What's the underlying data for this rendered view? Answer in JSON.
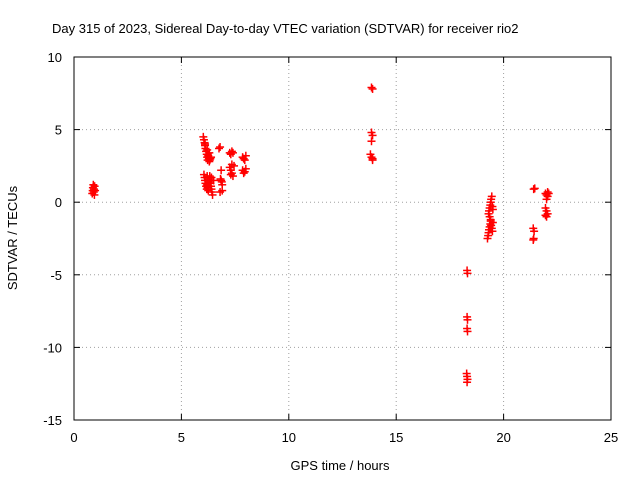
{
  "chart_data": {
    "type": "scatter",
    "title": "Day 315 of 2023, Sidereal Day-to-day VTEC variation (SDTVAR) for receiver rio2",
    "xlabel": "GPS time / hours",
    "ylabel": "SDTVAR / TECUs",
    "xlim": [
      0,
      25
    ],
    "ylim": [
      -15,
      10
    ],
    "xticks": [
      "0",
      "5",
      "10",
      "15",
      "20",
      "25"
    ],
    "yticks": [
      "10",
      "5",
      "0",
      "-5",
      "-10",
      "-15"
    ],
    "grid": true,
    "marker": "plus",
    "color": "#ff0000",
    "series": [
      {
        "name": "SDTVAR",
        "points": [
          [
            0.85,
            0.6
          ],
          [
            0.87,
            0.8
          ],
          [
            0.88,
            1.0
          ],
          [
            0.9,
            1.2
          ],
          [
            0.92,
            0.7
          ],
          [
            0.93,
            0.9
          ],
          [
            0.95,
            0.5
          ],
          [
            0.96,
            1.1
          ],
          [
            0.98,
            0.8
          ],
          [
            6.02,
            4.5
          ],
          [
            6.05,
            4.3
          ],
          [
            6.08,
            4.1
          ],
          [
            6.1,
            3.9
          ],
          [
            6.12,
            3.7
          ],
          [
            6.15,
            3.5
          ],
          [
            6.18,
            3.3
          ],
          [
            6.2,
            3.1
          ],
          [
            6.22,
            2.9
          ],
          [
            6.25,
            3.2
          ],
          [
            6.28,
            3.0
          ],
          [
            6.3,
            2.8
          ],
          [
            6.32,
            2.9
          ],
          [
            6.35,
            3.0
          ],
          [
            6.38,
            3.1
          ],
          [
            6.1,
            4.0
          ],
          [
            6.2,
            3.6
          ],
          [
            6.3,
            3.4
          ],
          [
            6.05,
            1.9
          ],
          [
            6.08,
            1.7
          ],
          [
            6.1,
            1.5
          ],
          [
            6.12,
            1.3
          ],
          [
            6.15,
            1.1
          ],
          [
            6.18,
            0.9
          ],
          [
            6.2,
            1.2
          ],
          [
            6.22,
            1.0
          ],
          [
            6.25,
            0.8
          ],
          [
            6.28,
            1.4
          ],
          [
            6.3,
            1.6
          ],
          [
            6.32,
            1.8
          ],
          [
            6.35,
            1.3
          ],
          [
            6.38,
            1.1
          ],
          [
            6.4,
            0.9
          ],
          [
            6.42,
            0.7
          ],
          [
            6.45,
            0.5
          ],
          [
            6.5,
            1.5
          ],
          [
            6.4,
            1.7
          ],
          [
            6.2,
            1.8
          ],
          [
            6.75,
            3.7
          ],
          [
            6.8,
            3.8
          ],
          [
            6.85,
            2.2
          ],
          [
            6.82,
            1.6
          ],
          [
            6.88,
            1.4
          ],
          [
            6.9,
            1.2
          ],
          [
            6.85,
            1.5
          ],
          [
            6.8,
            0.7
          ],
          [
            6.9,
            0.8
          ],
          [
            7.25,
            3.4
          ],
          [
            7.3,
            3.3
          ],
          [
            7.35,
            3.5
          ],
          [
            7.4,
            3.4
          ],
          [
            7.25,
            2.4
          ],
          [
            7.3,
            2.2
          ],
          [
            7.35,
            2.0
          ],
          [
            7.4,
            1.8
          ],
          [
            7.45,
            2.5
          ],
          [
            7.3,
            1.9
          ],
          [
            7.35,
            2.6
          ],
          [
            7.85,
            3.1
          ],
          [
            7.9,
            3.0
          ],
          [
            7.95,
            2.9
          ],
          [
            8.0,
            3.2
          ],
          [
            7.85,
            2.2
          ],
          [
            7.9,
            2.0
          ],
          [
            7.95,
            2.1
          ],
          [
            8.0,
            2.3
          ],
          [
            13.85,
            7.9
          ],
          [
            13.9,
            7.8
          ],
          [
            13.85,
            4.8
          ],
          [
            13.9,
            4.6
          ],
          [
            13.85,
            4.2
          ],
          [
            13.8,
            3.3
          ],
          [
            13.85,
            3.1
          ],
          [
            13.9,
            3.0
          ],
          [
            13.9,
            2.9
          ],
          [
            18.3,
            -4.7
          ],
          [
            18.32,
            -4.9
          ],
          [
            18.3,
            -7.9
          ],
          [
            18.32,
            -8.1
          ],
          [
            18.3,
            -8.7
          ],
          [
            18.32,
            -8.9
          ],
          [
            18.28,
            -11.8
          ],
          [
            18.3,
            -12.0
          ],
          [
            18.32,
            -12.2
          ],
          [
            18.3,
            -12.4
          ],
          [
            19.25,
            -2.5
          ],
          [
            19.28,
            -2.3
          ],
          [
            19.3,
            -2.1
          ],
          [
            19.32,
            -1.9
          ],
          [
            19.35,
            -1.7
          ],
          [
            19.38,
            -1.5
          ],
          [
            19.4,
            -1.3
          ],
          [
            19.42,
            -1.6
          ],
          [
            19.45,
            -1.8
          ],
          [
            19.48,
            -2.0
          ],
          [
            19.5,
            -1.4
          ],
          [
            19.3,
            -0.8
          ],
          [
            19.32,
            -0.6
          ],
          [
            19.35,
            -0.4
          ],
          [
            19.38,
            -0.2
          ],
          [
            19.4,
            0.0
          ],
          [
            19.42,
            0.2
          ],
          [
            19.45,
            0.4
          ],
          [
            19.48,
            -0.3
          ],
          [
            19.5,
            -0.5
          ],
          [
            19.35,
            -1.0
          ],
          [
            19.4,
            -1.2
          ],
          [
            21.4,
            0.9
          ],
          [
            21.45,
            0.95
          ],
          [
            21.38,
            -1.8
          ],
          [
            21.42,
            -2.0
          ],
          [
            21.4,
            -2.5
          ],
          [
            21.38,
            -2.6
          ],
          [
            21.95,
            0.6
          ],
          [
            22.0,
            0.5
          ],
          [
            22.05,
            0.4
          ],
          [
            22.0,
            0.2
          ],
          [
            21.95,
            -0.4
          ],
          [
            22.0,
            -0.6
          ],
          [
            22.05,
            -0.8
          ],
          [
            22.0,
            -1.0
          ],
          [
            21.95,
            -0.9
          ],
          [
            22.05,
            0.7
          ],
          [
            22.1,
            0.6
          ]
        ]
      }
    ]
  }
}
